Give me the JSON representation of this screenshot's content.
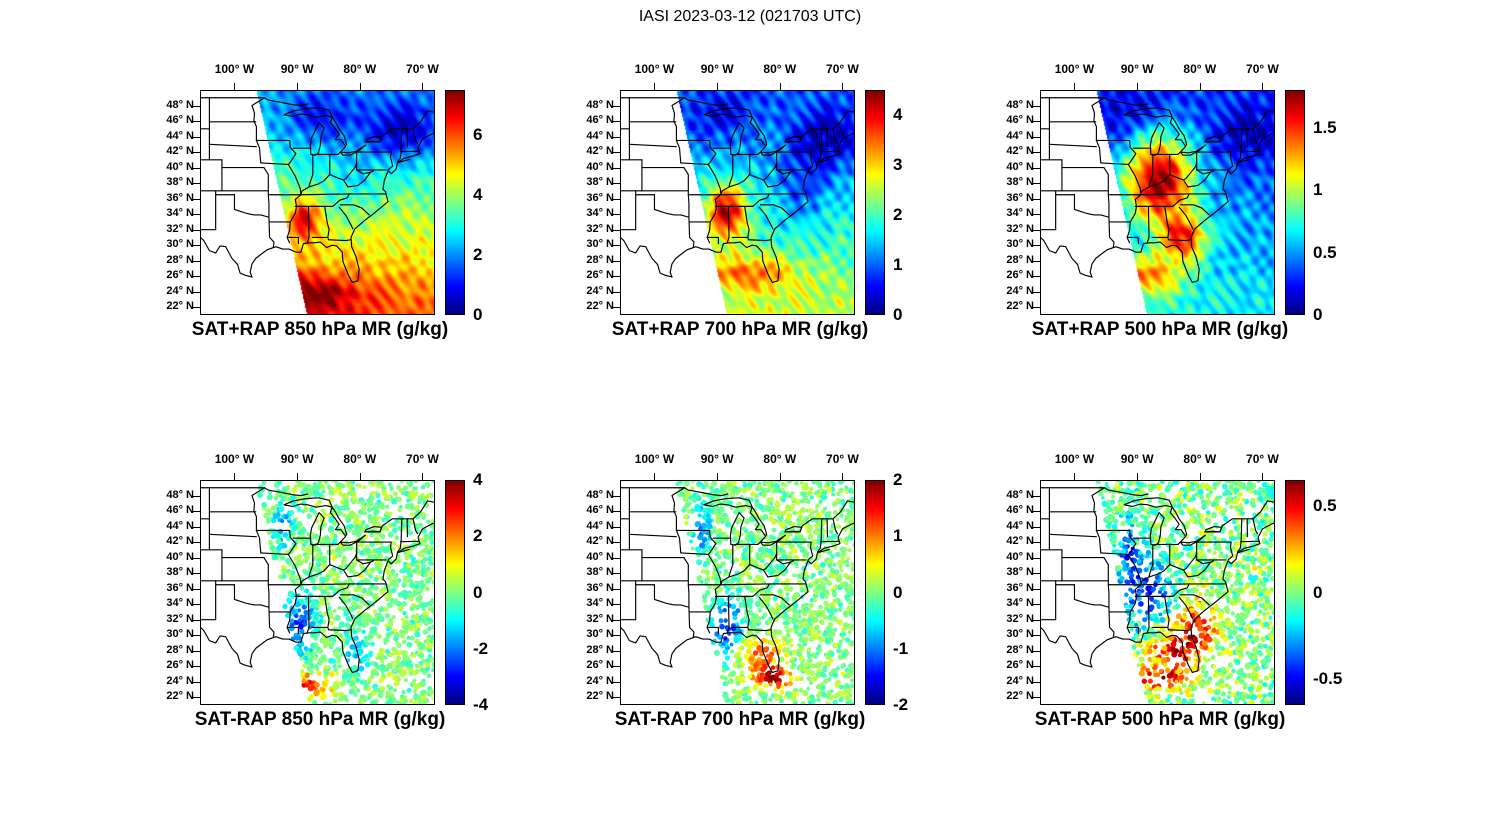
{
  "figure": {
    "title": "IASI 2023-03-12 (021703 UTC)",
    "background": "#ffffff"
  },
  "axes": {
    "lon_ticks": [
      {
        "value": -100,
        "label": "100° W"
      },
      {
        "value": -90,
        "label": "90° W"
      },
      {
        "value": -80,
        "label": "80° W"
      },
      {
        "value": -70,
        "label": "70° W"
      }
    ],
    "lat_ticks": [
      {
        "value": 48,
        "label": "48° N"
      },
      {
        "value": 46,
        "label": "46° N"
      },
      {
        "value": 44,
        "label": "44° N"
      },
      {
        "value": 42,
        "label": "42° N"
      },
      {
        "value": 40,
        "label": "40° N"
      },
      {
        "value": 38,
        "label": "38° N"
      },
      {
        "value": 36,
        "label": "36° N"
      },
      {
        "value": 34,
        "label": "34° N"
      },
      {
        "value": 32,
        "label": "32° N"
      },
      {
        "value": 30,
        "label": "30° N"
      },
      {
        "value": 28,
        "label": "28° N"
      },
      {
        "value": 26,
        "label": "26° N"
      },
      {
        "value": 24,
        "label": "24° N"
      },
      {
        "value": 22,
        "label": "22° N"
      }
    ]
  },
  "chart_data": {
    "type": "heatmap",
    "projection": "lon-lat map panels, 2 rows x 3 columns",
    "instrument": "IASI",
    "date": "2023-03-12",
    "time_utc": "021703",
    "colormap": "jet",
    "extent": {
      "lon_min": -105.5,
      "lon_max": -68,
      "lat_min": 21,
      "lat_max": 50
    },
    "swath_left_edge": {
      "lon_at_north": -96.5,
      "lon_at_south": -88.4
    },
    "panels": [
      {
        "title": "SAT+RAP 850 hPa MR (g/kg)",
        "mode": "fill",
        "level_hPa": 850,
        "quantity": "SAT+RAP mixing ratio",
        "units": "g/kg",
        "cmin": 0,
        "cmax": 7.5,
        "colorbar_ticks": [
          {
            "v": 0,
            "label": "0"
          },
          {
            "v": 2,
            "label": "2"
          },
          {
            "v": 4,
            "label": "4"
          },
          {
            "v": 6,
            "label": "6"
          }
        ],
        "grad_north": 0.28,
        "grad_south": 0.8,
        "noise": 0.1,
        "features": [
          {
            "lon": -88.8,
            "lat": 33.2,
            "sx": 1.7,
            "sy": 1.9,
            "amp": 0.38
          },
          {
            "lon": -89.0,
            "lat": 23.8,
            "sx": 6.0,
            "sy": 1.8,
            "amp": 0.3
          },
          {
            "lon": -96.5,
            "lat": 27.5,
            "sx": 2.5,
            "sy": 1.8,
            "amp": 0.18
          },
          {
            "lon": -73.5,
            "lat": 44.5,
            "sx": 4.5,
            "sy": 3.0,
            "amp": -0.28
          },
          {
            "lon": -86.0,
            "lat": 46.0,
            "sx": 4.0,
            "sy": 2.5,
            "amp": -0.18
          },
          {
            "lon": -81.0,
            "lat": 37.5,
            "sx": 3.0,
            "sy": 3.0,
            "amp": -0.1
          }
        ]
      },
      {
        "title": "SAT+RAP 700 hPa MR (g/kg)",
        "mode": "fill",
        "level_hPa": 700,
        "quantity": "SAT+RAP mixing ratio",
        "units": "g/kg",
        "cmin": 0,
        "cmax": 4.5,
        "colorbar_ticks": [
          {
            "v": 0,
            "label": "0"
          },
          {
            "v": 1,
            "label": "1"
          },
          {
            "v": 2,
            "label": "2"
          },
          {
            "v": 3,
            "label": "3"
          },
          {
            "v": 4,
            "label": "4"
          }
        ],
        "grad_north": 0.22,
        "grad_south": 0.58,
        "noise": 0.12,
        "features": [
          {
            "lon": -88.5,
            "lat": 34.3,
            "sx": 2.2,
            "sy": 2.6,
            "amp": 0.55
          },
          {
            "lon": -85.0,
            "lat": 26.3,
            "sx": 5.0,
            "sy": 1.6,
            "amp": 0.28
          },
          {
            "lon": -72.5,
            "lat": 43.5,
            "sx": 4.0,
            "sy": 3.0,
            "amp": -0.22
          },
          {
            "lon": -76.5,
            "lat": 37.0,
            "sx": 3.0,
            "sy": 4.0,
            "amp": -0.15
          },
          {
            "lon": -90.0,
            "lat": 46.5,
            "sx": 4.0,
            "sy": 2.5,
            "amp": -0.12
          }
        ]
      },
      {
        "title": "SAT+RAP 500 hPa MR (g/kg)",
        "mode": "fill",
        "level_hPa": 500,
        "quantity": "SAT+RAP mixing ratio",
        "units": "g/kg",
        "cmin": 0,
        "cmax": 1.8,
        "colorbar_ticks": [
          {
            "v": 0,
            "label": "0"
          },
          {
            "v": 0.5,
            "label": "0.5"
          },
          {
            "v": 1,
            "label": "1"
          },
          {
            "v": 1.5,
            "label": "1.5"
          }
        ],
        "grad_north": 0.18,
        "grad_south": 0.38,
        "noise": 0.12,
        "features": [
          {
            "lon": -86.5,
            "lat": 38.5,
            "sx": 3.8,
            "sy": 4.0,
            "amp": 0.75
          },
          {
            "lon": -82.5,
            "lat": 31.0,
            "sx": 2.6,
            "sy": 2.0,
            "amp": 0.5
          },
          {
            "lon": -88.0,
            "lat": 26.0,
            "sx": 4.0,
            "sy": 2.0,
            "amp": 0.4
          },
          {
            "lon": -72.5,
            "lat": 44.0,
            "sx": 4.0,
            "sy": 3.0,
            "amp": -0.15
          },
          {
            "lon": -92.0,
            "lat": 47.0,
            "sx": 4.0,
            "sy": 3.0,
            "amp": -0.1
          }
        ]
      },
      {
        "title": "SAT-RAP 850 hPa MR (g/kg)",
        "mode": "dots",
        "level_hPa": 850,
        "quantity": "SAT-RAP mixing ratio difference",
        "units": "g/kg",
        "cmin": -4,
        "cmax": 4,
        "colorbar_ticks": [
          {
            "v": -4,
            "label": "-4"
          },
          {
            "v": -2,
            "label": "-2"
          },
          {
            "v": 0,
            "label": "0"
          },
          {
            "v": 2,
            "label": "2"
          },
          {
            "v": 4,
            "label": "4"
          }
        ],
        "grad_north": 0.5,
        "grad_south": 0.5,
        "noise": 0.07,
        "features": [
          {
            "lon": -89.5,
            "lat": 31.5,
            "sx": 1.8,
            "sy": 2.6,
            "amp": -0.3
          },
          {
            "lon": -90.5,
            "lat": 23.6,
            "sx": 4.0,
            "sy": 1.1,
            "amp": 0.42
          },
          {
            "lon": -80.5,
            "lat": 27.5,
            "sx": 1.6,
            "sy": 2.0,
            "amp": -0.18
          },
          {
            "lon": -94.5,
            "lat": 26.0,
            "sx": 1.6,
            "sy": 1.4,
            "amp": -0.2
          },
          {
            "lon": -92.3,
            "lat": 44.0,
            "sx": 0.9,
            "sy": 2.4,
            "amp": -0.22
          }
        ]
      },
      {
        "title": "SAT-RAP 700 hPa MR (g/kg)",
        "mode": "dots",
        "level_hPa": 700,
        "quantity": "SAT-RAP mixing ratio difference",
        "units": "g/kg",
        "cmin": -2,
        "cmax": 2,
        "colorbar_ticks": [
          {
            "v": -2,
            "label": "-2"
          },
          {
            "v": -1,
            "label": "-1"
          },
          {
            "v": 0,
            "label": "0"
          },
          {
            "v": 1,
            "label": "1"
          },
          {
            "v": 2,
            "label": "2"
          }
        ],
        "grad_north": 0.5,
        "grad_south": 0.5,
        "noise": 0.07,
        "features": [
          {
            "lon": -88.5,
            "lat": 31.0,
            "sx": 2.0,
            "sy": 2.6,
            "amp": -0.33
          },
          {
            "lon": -83.5,
            "lat": 27.5,
            "sx": 2.4,
            "sy": 1.8,
            "amp": 0.3
          },
          {
            "lon": -80.8,
            "lat": 24.5,
            "sx": 2.0,
            "sy": 1.0,
            "amp": 0.42
          },
          {
            "lon": -92.5,
            "lat": 43.5,
            "sx": 1.0,
            "sy": 2.6,
            "amp": -0.25
          }
        ]
      },
      {
        "title": "SAT-RAP 500 hPa MR (g/kg)",
        "mode": "dots",
        "level_hPa": 500,
        "quantity": "SAT-RAP mixing ratio difference",
        "units": "g/kg",
        "cmin": -0.65,
        "cmax": 0.65,
        "colorbar_ticks": [
          {
            "v": -0.5,
            "label": "-0.5"
          },
          {
            "v": 0,
            "label": "0"
          },
          {
            "v": 0.5,
            "label": "0.5"
          }
        ],
        "grad_north": 0.5,
        "grad_south": 0.5,
        "noise": 0.1,
        "features": [
          {
            "lon": -88.5,
            "lat": 35.5,
            "sx": 2.6,
            "sy": 3.0,
            "amp": -0.33
          },
          {
            "lon": -84.0,
            "lat": 28.0,
            "sx": 3.0,
            "sy": 2.0,
            "amp": 0.38
          },
          {
            "lon": -80.3,
            "lat": 31.5,
            "sx": 2.0,
            "sy": 2.0,
            "amp": 0.33
          },
          {
            "lon": -87.0,
            "lat": 24.3,
            "sx": 3.0,
            "sy": 1.0,
            "amp": 0.38
          },
          {
            "lon": -91.5,
            "lat": 41.0,
            "sx": 1.2,
            "sy": 3.0,
            "amp": -0.25
          }
        ]
      }
    ]
  }
}
